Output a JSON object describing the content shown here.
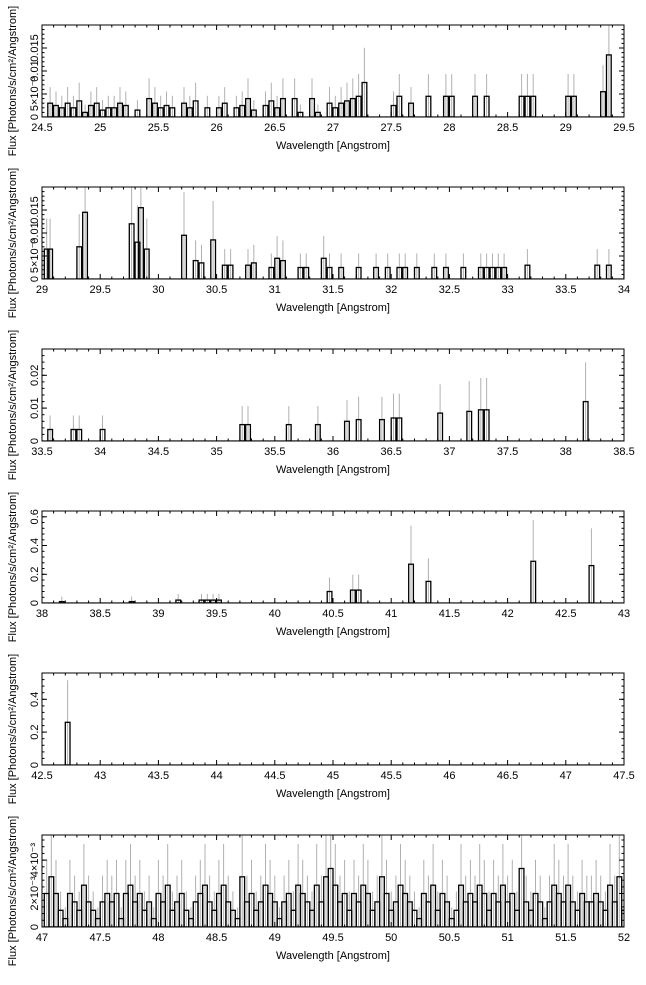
{
  "page": {
    "colors": {
      "histogram": "#000000",
      "error_bars": "#b0b0b0",
      "frame": "#000000",
      "background": "#ffffff"
    }
  },
  "chart_data": [
    {
      "type": "histogram",
      "xlabel": "Wavelength [Angstrom]",
      "ylabel": "Flux [Photons/s/cm²/Angstrom]",
      "xlim": [
        24.5,
        29.5
      ],
      "ylim": [
        0,
        0.02
      ],
      "xticks": [
        24.5,
        25,
        25.5,
        26,
        26.5,
        27,
        27.5,
        28,
        28.5,
        29,
        29.5
      ],
      "xtick_labels": [
        "24.5",
        "25",
        "25.5",
        "26",
        "26.5",
        "27",
        "27.5",
        "28",
        "28.5",
        "29",
        "29.5"
      ],
      "yticks": [
        0.005,
        0.01,
        0.015
      ],
      "ytick_labels": [
        "5×10⁻³",
        "0.01",
        "0.015"
      ],
      "bin_width": 0.04,
      "bins": [
        [
          24.55,
          0.003
        ],
        [
          24.6,
          0.0025
        ],
        [
          24.65,
          0.002
        ],
        [
          24.7,
          0.003
        ],
        [
          24.75,
          0.002
        ],
        [
          24.8,
          0.0035
        ],
        [
          24.85,
          0.001
        ],
        [
          24.9,
          0.0025
        ],
        [
          24.95,
          0.003
        ],
        [
          25.0,
          0.0015
        ],
        [
          25.05,
          0.002
        ],
        [
          25.1,
          0.002
        ],
        [
          25.15,
          0.003
        ],
        [
          25.2,
          0.0025
        ],
        [
          25.3,
          0.0015
        ],
        [
          25.4,
          0.004
        ],
        [
          25.45,
          0.003
        ],
        [
          25.5,
          0.002
        ],
        [
          25.55,
          0.0025
        ],
        [
          25.6,
          0.002
        ],
        [
          25.7,
          0.003
        ],
        [
          25.75,
          0.002
        ],
        [
          25.8,
          0.0035
        ],
        [
          25.9,
          0.002
        ],
        [
          26.0,
          0.002
        ],
        [
          26.05,
          0.003
        ],
        [
          26.15,
          0.002
        ],
        [
          26.2,
          0.0025
        ],
        [
          26.25,
          0.004
        ],
        [
          26.3,
          0.0015
        ],
        [
          26.4,
          0.0025
        ],
        [
          26.45,
          0.0035
        ],
        [
          26.5,
          0.002
        ],
        [
          26.55,
          0.004
        ],
        [
          26.65,
          0.004
        ],
        [
          26.7,
          0.001
        ],
        [
          26.8,
          0.004
        ],
        [
          26.85,
          0.001
        ],
        [
          26.95,
          0.003
        ],
        [
          27.0,
          0.002
        ],
        [
          27.05,
          0.003
        ],
        [
          27.1,
          0.0035
        ],
        [
          27.15,
          0.004
        ],
        [
          27.2,
          0.0045
        ],
        [
          27.25,
          0.0075
        ],
        [
          27.5,
          0.0025
        ],
        [
          27.55,
          0.0045
        ],
        [
          27.65,
          0.003
        ],
        [
          27.8,
          0.0045
        ],
        [
          27.95,
          0.0045
        ],
        [
          28.0,
          0.0045
        ],
        [
          28.2,
          0.0045
        ],
        [
          28.3,
          0.0045
        ],
        [
          28.6,
          0.0045
        ],
        [
          28.65,
          0.0045
        ],
        [
          28.7,
          0.0045
        ],
        [
          29.0,
          0.0045
        ],
        [
          29.05,
          0.0045
        ],
        [
          29.3,
          0.0055
        ],
        [
          29.35,
          0.0135
        ]
      ]
    },
    {
      "type": "histogram",
      "xlabel": "Wavelength [Angstrom]",
      "ylabel": "Flux [Photons/s/cm²/Angstrom]",
      "xlim": [
        29,
        34
      ],
      "ylim": [
        0,
        0.02
      ],
      "xticks": [
        29,
        29.5,
        30,
        30.5,
        31,
        31.5,
        32,
        32.5,
        33,
        33.5,
        34
      ],
      "xtick_labels": [
        "29",
        "29.5",
        "30",
        "30.5",
        "31",
        "31.5",
        "32",
        "32.5",
        "33",
        "33.5",
        "34"
      ],
      "yticks": [
        0.005,
        0.01,
        0.015
      ],
      "ytick_labels": [
        "5×10⁻³",
        "0.01",
        "0.015"
      ],
      "bin_width": 0.04,
      "bins": [
        [
          29.02,
          0.0065
        ],
        [
          29.05,
          0.0065
        ],
        [
          29.3,
          0.007
        ],
        [
          29.35,
          0.0145
        ],
        [
          29.75,
          0.012
        ],
        [
          29.8,
          0.008
        ],
        [
          29.83,
          0.0155
        ],
        [
          29.88,
          0.0065
        ],
        [
          30.2,
          0.0095
        ],
        [
          30.3,
          0.004
        ],
        [
          30.35,
          0.0035
        ],
        [
          30.45,
          0.0085
        ],
        [
          30.55,
          0.003
        ],
        [
          30.6,
          0.003
        ],
        [
          30.75,
          0.003
        ],
        [
          30.8,
          0.0035
        ],
        [
          30.95,
          0.0025
        ],
        [
          31.0,
          0.0045
        ],
        [
          31.05,
          0.004
        ],
        [
          31.2,
          0.0025
        ],
        [
          31.25,
          0.0025
        ],
        [
          31.4,
          0.0045
        ],
        [
          31.45,
          0.0025
        ],
        [
          31.55,
          0.0025
        ],
        [
          31.7,
          0.0025
        ],
        [
          31.85,
          0.0025
        ],
        [
          31.95,
          0.0025
        ],
        [
          32.05,
          0.0025
        ],
        [
          32.1,
          0.0025
        ],
        [
          32.2,
          0.0025
        ],
        [
          32.35,
          0.0025
        ],
        [
          32.45,
          0.0025
        ],
        [
          32.6,
          0.0025
        ],
        [
          32.75,
          0.0025
        ],
        [
          32.8,
          0.0025
        ],
        [
          32.85,
          0.0025
        ],
        [
          32.9,
          0.0025
        ],
        [
          32.95,
          0.0025
        ],
        [
          33.15,
          0.003
        ],
        [
          33.75,
          0.003
        ],
        [
          33.85,
          0.003
        ],
        [
          34.0,
          0.004
        ]
      ]
    },
    {
      "type": "histogram",
      "xlabel": "Wavelength [Angstrom]",
      "ylabel": "Flux [Photons/s/cm²/Angstrom]",
      "xlim": [
        33.5,
        38.5
      ],
      "ylim": [
        0,
        0.028
      ],
      "xticks": [
        33.5,
        34,
        34.5,
        35,
        35.5,
        36,
        36.5,
        37,
        37.5,
        38,
        38.5
      ],
      "xtick_labels": [
        "33.5",
        "34",
        "34.5",
        "35",
        "35.5",
        "36",
        "36.5",
        "37",
        "37.5",
        "38",
        "38.5"
      ],
      "yticks": [
        0.01,
        0.02
      ],
      "ytick_labels": [
        "0.01",
        "0.02"
      ],
      "bin_width": 0.04,
      "bins": [
        [
          33.55,
          0.0035
        ],
        [
          33.75,
          0.0035
        ],
        [
          33.8,
          0.0035
        ],
        [
          34.0,
          0.0035
        ],
        [
          35.2,
          0.005
        ],
        [
          35.25,
          0.005
        ],
        [
          35.6,
          0.005
        ],
        [
          35.85,
          0.005
        ],
        [
          36.1,
          0.006
        ],
        [
          36.2,
          0.0065
        ],
        [
          36.4,
          0.0065
        ],
        [
          36.5,
          0.007
        ],
        [
          36.55,
          0.007
        ],
        [
          36.9,
          0.0085
        ],
        [
          37.15,
          0.009
        ],
        [
          37.25,
          0.0095
        ],
        [
          37.3,
          0.0095
        ],
        [
          38.15,
          0.012
        ]
      ]
    },
    {
      "type": "histogram",
      "xlabel": "Wavelength [Angstrom]",
      "ylabel": "Flux [Photons/s/cm²/Angstrom]",
      "xlim": [
        38,
        43
      ],
      "ylim": [
        0,
        0.64
      ],
      "xticks": [
        38,
        38.5,
        39,
        39.5,
        40,
        40.5,
        41,
        41.5,
        42,
        42.5,
        43
      ],
      "xtick_labels": [
        "38",
        "38.5",
        "39",
        "39.5",
        "40",
        "40.5",
        "41",
        "41.5",
        "42",
        "42.5",
        "43"
      ],
      "yticks": [
        0.2,
        0.4,
        0.6
      ],
      "ytick_labels": [
        "0.2",
        "0.4",
        "0.6"
      ],
      "bin_width": 0.04,
      "bins": [
        [
          38.15,
          0.01
        ],
        [
          38.75,
          0.01
        ],
        [
          39.15,
          0.02
        ],
        [
          39.35,
          0.02
        ],
        [
          39.4,
          0.02
        ],
        [
          39.45,
          0.02
        ],
        [
          39.5,
          0.02
        ],
        [
          40.45,
          0.08
        ],
        [
          40.65,
          0.09
        ],
        [
          40.7,
          0.09
        ],
        [
          41.15,
          0.27
        ],
        [
          41.3,
          0.15
        ],
        [
          42.2,
          0.29
        ],
        [
          42.7,
          0.26
        ]
      ]
    },
    {
      "type": "histogram",
      "xlabel": "Wavelength [Angstrom]",
      "ylabel": "Flux [Photons/s/cm²/Angstrom]",
      "xlim": [
        42.5,
        47.5
      ],
      "ylim": [
        0,
        0.56
      ],
      "xticks": [
        42.5,
        43,
        43.5,
        44,
        44.5,
        45,
        45.5,
        46,
        46.5,
        47,
        47.5
      ],
      "xtick_labels": [
        "42.5",
        "43",
        "43.5",
        "44",
        "44.5",
        "45",
        "45.5",
        "46",
        "46.5",
        "47",
        "47.5"
      ],
      "yticks": [
        0.2,
        0.4
      ],
      "ytick_labels": [
        "0.2",
        "0.4"
      ],
      "bin_width": 0.04,
      "bins": [
        [
          42.7,
          0.26
        ]
      ]
    },
    {
      "type": "histogram",
      "xlabel": "Wavelength [Angstrom]",
      "ylabel": "Flux [Photons/s/cm²/Angstrom]",
      "xlim": [
        47,
        52
      ],
      "ylim": [
        0,
        0.0055
      ],
      "xticks": [
        47,
        47.5,
        48,
        48.5,
        49,
        49.5,
        50,
        50.5,
        51,
        51.5,
        52
      ],
      "xtick_labels": [
        "47",
        "47.5",
        "48",
        "48.5",
        "49",
        "49.5",
        "50",
        "50.5",
        "51",
        "51.5",
        "52"
      ],
      "yticks": [
        0.002,
        0.004
      ],
      "ytick_labels": [
        "2×10⁻³",
        "4×10⁻³"
      ],
      "bin_width": 0.04,
      "bins": [
        [
          47.02,
          0.002
        ],
        [
          47.06,
          0.003
        ],
        [
          47.1,
          0.002
        ],
        [
          47.14,
          0.001
        ],
        [
          47.18,
          0.0005
        ],
        [
          47.22,
          0.002
        ],
        [
          47.26,
          0.0015
        ],
        [
          47.3,
          0.001
        ],
        [
          47.34,
          0.0025
        ],
        [
          47.38,
          0.0015
        ],
        [
          47.42,
          0.001
        ],
        [
          47.46,
          0.0005
        ],
        [
          47.5,
          0.0015
        ],
        [
          47.54,
          0.002
        ],
        [
          47.58,
          0.0015
        ],
        [
          47.62,
          0.002
        ],
        [
          47.66,
          0.0005
        ],
        [
          47.7,
          0.002
        ],
        [
          47.74,
          0.0025
        ],
        [
          47.78,
          0.0015
        ],
        [
          47.82,
          0.002
        ],
        [
          47.86,
          0.001
        ],
        [
          47.9,
          0.0015
        ],
        [
          47.94,
          0.0005
        ],
        [
          47.98,
          0.002
        ],
        [
          48.02,
          0.0015
        ],
        [
          48.06,
          0.0025
        ],
        [
          48.1,
          0.001
        ],
        [
          48.14,
          0.0015
        ],
        [
          48.18,
          0.002
        ],
        [
          48.22,
          0.001
        ],
        [
          48.26,
          0.0005
        ],
        [
          48.3,
          0.0015
        ],
        [
          48.34,
          0.002
        ],
        [
          48.38,
          0.0025
        ],
        [
          48.42,
          0.0015
        ],
        [
          48.46,
          0.001
        ],
        [
          48.5,
          0.002
        ],
        [
          48.54,
          0.0025
        ],
        [
          48.58,
          0.0015
        ],
        [
          48.62,
          0.001
        ],
        [
          48.66,
          0.0005
        ],
        [
          48.7,
          0.003
        ],
        [
          48.74,
          0.0015
        ],
        [
          48.78,
          0.002
        ],
        [
          48.82,
          0.001
        ],
        [
          48.86,
          0.0015
        ],
        [
          48.9,
          0.0025
        ],
        [
          48.94,
          0.002
        ],
        [
          48.98,
          0.0015
        ],
        [
          49.02,
          0.0005
        ],
        [
          49.06,
          0.0015
        ],
        [
          49.1,
          0.002
        ],
        [
          49.14,
          0.001
        ],
        [
          49.18,
          0.0025
        ],
        [
          49.22,
          0.002
        ],
        [
          49.26,
          0.0015
        ],
        [
          49.3,
          0.001
        ],
        [
          49.34,
          0.0025
        ],
        [
          49.38,
          0.0015
        ],
        [
          49.42,
          0.003
        ],
        [
          49.46,
          0.0035
        ],
        [
          49.5,
          0.0025
        ],
        [
          49.54,
          0.0015
        ],
        [
          49.58,
          0.002
        ],
        [
          49.62,
          0.001
        ],
        [
          49.66,
          0.002
        ],
        [
          49.7,
          0.0015
        ],
        [
          49.74,
          0.0025
        ],
        [
          49.78,
          0.002
        ],
        [
          49.82,
          0.001
        ],
        [
          49.86,
          0.0015
        ],
        [
          49.9,
          0.003
        ],
        [
          49.94,
          0.002
        ],
        [
          49.98,
          0.001
        ],
        [
          50.02,
          0.0015
        ],
        [
          50.06,
          0.0025
        ],
        [
          50.1,
          0.002
        ],
        [
          50.14,
          0.0015
        ],
        [
          50.18,
          0.001
        ],
        [
          50.22,
          0.0005
        ],
        [
          50.26,
          0.002
        ],
        [
          50.3,
          0.0015
        ],
        [
          50.34,
          0.0025
        ],
        [
          50.38,
          0.001
        ],
        [
          50.42,
          0.002
        ],
        [
          50.46,
          0.0015
        ],
        [
          50.5,
          0.0005
        ],
        [
          50.54,
          0.001
        ],
        [
          50.58,
          0.0025
        ],
        [
          50.62,
          0.0015
        ],
        [
          50.66,
          0.002
        ],
        [
          50.7,
          0.0015
        ],
        [
          50.74,
          0.0025
        ],
        [
          50.78,
          0.002
        ],
        [
          50.82,
          0.001
        ],
        [
          50.86,
          0.002
        ],
        [
          50.9,
          0.0015
        ],
        [
          50.94,
          0.0025
        ],
        [
          50.98,
          0.0015
        ],
        [
          51.02,
          0.002
        ],
        [
          51.06,
          0.001
        ],
        [
          51.1,
          0.0035
        ],
        [
          51.14,
          0.0015
        ],
        [
          51.18,
          0.001
        ],
        [
          51.22,
          0.002
        ],
        [
          51.26,
          0.0015
        ],
        [
          51.3,
          0.0005
        ],
        [
          51.34,
          0.0015
        ],
        [
          51.38,
          0.0025
        ],
        [
          51.42,
          0.002
        ],
        [
          51.46,
          0.0015
        ],
        [
          51.5,
          0.0025
        ],
        [
          51.54,
          0.0015
        ],
        [
          51.58,
          0.001
        ],
        [
          51.62,
          0.002
        ],
        [
          51.66,
          0.0015
        ],
        [
          51.7,
          0.0015
        ],
        [
          51.74,
          0.002
        ],
        [
          51.78,
          0.0015
        ],
        [
          51.82,
          0.001
        ],
        [
          51.86,
          0.0025
        ],
        [
          51.9,
          0.0015
        ],
        [
          51.94,
          0.003
        ],
        [
          51.98,
          0.001
        ]
      ]
    }
  ]
}
